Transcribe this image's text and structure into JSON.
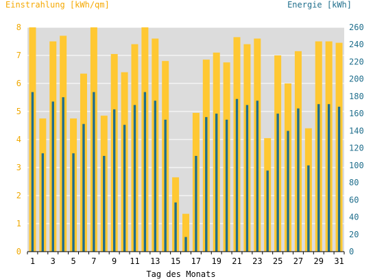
{
  "chart_data": {
    "type": "bar",
    "title_left": "Einstrahlung [kWh/qm]",
    "title_right": "Energie [kWh]",
    "xlabel": "Tag des Monats",
    "days": [
      1,
      2,
      3,
      4,
      5,
      6,
      7,
      8,
      9,
      10,
      11,
      12,
      13,
      14,
      15,
      16,
      17,
      18,
      19,
      20,
      21,
      22,
      23,
      24,
      25,
      26,
      27,
      28,
      29,
      30,
      31
    ],
    "x_tick_labels": [
      "1",
      "3",
      "5",
      "7",
      "9",
      "11",
      "13",
      "15",
      "17",
      "19",
      "21",
      "23",
      "25",
      "27",
      "29",
      "31"
    ],
    "y_left": {
      "ylim": [
        0,
        8
      ],
      "ticks": [
        "0",
        "1",
        "2",
        "3",
        "4",
        "5",
        "6",
        "7",
        "8"
      ]
    },
    "y_right": {
      "ylim": [
        0,
        260
      ],
      "ticks": [
        "0",
        "20",
        "40",
        "60",
        "80",
        "100",
        "120",
        "140",
        "160",
        "180",
        "200",
        "220",
        "240",
        "260"
      ]
    },
    "grid": true,
    "series": [
      {
        "name": "Einstrahlung [kWh/qm]",
        "axis": "left",
        "color": "#ffc832",
        "values": [
          8.0,
          4.75,
          7.5,
          7.7,
          4.75,
          6.35,
          8.0,
          4.85,
          7.05,
          6.4,
          7.4,
          8.0,
          7.6,
          6.8,
          2.65,
          1.35,
          4.95,
          6.85,
          7.1,
          6.75,
          7.65,
          7.4,
          7.6,
          4.05,
          7.0,
          6.0,
          7.15,
          4.4,
          7.5,
          7.5,
          7.45
        ]
      },
      {
        "name": "Energie [kWh]",
        "axis": "right",
        "color": "#1f6e8c",
        "values": [
          185,
          114,
          174,
          179,
          114,
          148,
          185,
          111,
          165,
          147,
          170,
          185,
          175,
          153,
          57,
          17,
          111,
          156,
          160,
          153,
          177,
          170,
          175,
          94,
          160,
          140,
          166,
          100,
          171,
          171,
          168
        ]
      }
    ],
    "colors": {
      "plot_background": "#dcdcdc",
      "grid": "#ffffff",
      "axis": "#000000"
    }
  }
}
